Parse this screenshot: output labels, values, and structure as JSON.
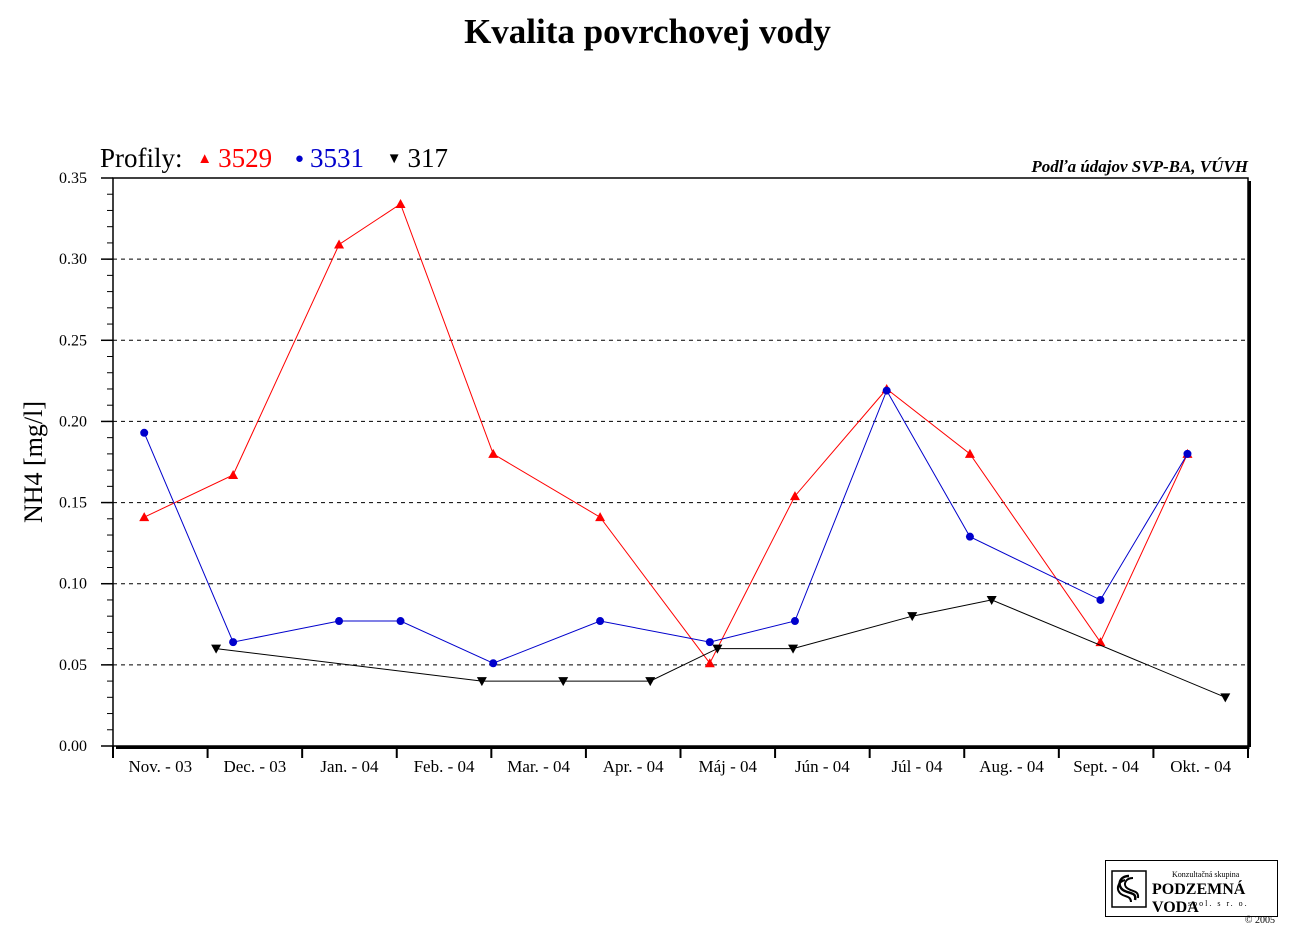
{
  "title": "Kvalita povrchovej vody",
  "legend": {
    "prefix": "Profily:",
    "items": [
      {
        "label": "3529",
        "color": "#ff0000",
        "marker": "triangle-up"
      },
      {
        "label": "3531",
        "color": "#0000cc",
        "marker": "circle"
      },
      {
        "label": "317",
        "color": "#000000",
        "marker": "triangle-down"
      }
    ]
  },
  "source_note": "Podľa údajov SVP-BA, VÚVH",
  "logo": {
    "top_text": "Konzultačná skupina",
    "main_text": "PODZEMNÁ VODA",
    "sub_text": "spol. s r. o.",
    "copyright": "© 2005"
  },
  "chart_data": {
    "type": "line",
    "ylabel": "NH4 [mg/l]",
    "xlabel": "",
    "ylim": [
      0,
      0.35
    ],
    "yticks": [
      "0.00",
      "0.05",
      "0.10",
      "0.15",
      "0.20",
      "0.25",
      "0.30",
      "0.35"
    ],
    "grid": "horizontal-dashed",
    "categories": [
      "Nov. - 03",
      "Dec. - 03",
      "Jan. - 04",
      "Feb. - 04",
      "Mar. - 04",
      "Apr. - 04",
      "Máj - 04",
      "Jún - 04",
      "Júl - 04",
      "Aug. - 04",
      "Sept. - 04",
      "Okt. - 04"
    ],
    "series": [
      {
        "name": "3529",
        "color": "#ff0000",
        "marker": "triangle-up",
        "points": [
          [
            0.33,
            0.141
          ],
          [
            1.27,
            0.167
          ],
          [
            2.39,
            0.309
          ],
          [
            3.04,
            0.334
          ],
          [
            4.02,
            0.18
          ],
          [
            5.15,
            0.141
          ],
          [
            6.31,
            0.051
          ],
          [
            7.21,
            0.154
          ],
          [
            8.18,
            0.22
          ],
          [
            9.06,
            0.18
          ],
          [
            10.44,
            0.064
          ],
          [
            11.36,
            0.18
          ]
        ]
      },
      {
        "name": "3531",
        "color": "#0000cc",
        "marker": "circle",
        "points": [
          [
            0.33,
            0.193
          ],
          [
            1.27,
            0.064
          ],
          [
            2.39,
            0.077
          ],
          [
            3.04,
            0.077
          ],
          [
            4.02,
            0.051
          ],
          [
            5.15,
            0.077
          ],
          [
            6.31,
            0.064
          ],
          [
            7.21,
            0.077
          ],
          [
            8.18,
            0.219
          ],
          [
            9.06,
            0.129
          ],
          [
            10.44,
            0.09
          ],
          [
            11.36,
            0.18
          ]
        ]
      },
      {
        "name": "317",
        "color": "#000000",
        "marker": "triangle-down",
        "points": [
          [
            1.09,
            0.06
          ],
          [
            3.9,
            0.04
          ],
          [
            4.76,
            0.04
          ],
          [
            5.68,
            0.04
          ],
          [
            6.39,
            0.06
          ],
          [
            7.19,
            0.06
          ],
          [
            8.45,
            0.08
          ],
          [
            9.29,
            0.09
          ],
          [
            11.76,
            0.03
          ]
        ]
      }
    ]
  }
}
